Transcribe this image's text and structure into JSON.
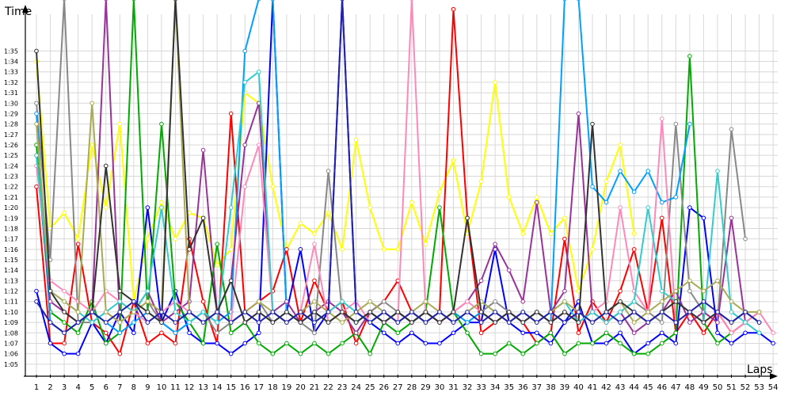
{
  "chart_data": {
    "type": "line",
    "title": "",
    "ylabel": "Time",
    "xlabel": "Laps",
    "x": [
      1,
      2,
      3,
      4,
      5,
      6,
      7,
      8,
      9,
      10,
      11,
      12,
      13,
      14,
      15,
      16,
      17,
      18,
      19,
      20,
      21,
      22,
      23,
      24,
      25,
      26,
      27,
      28,
      29,
      30,
      31,
      32,
      33,
      34,
      35,
      36,
      37,
      38,
      39,
      40,
      41,
      42,
      43,
      44,
      45,
      46,
      47,
      48,
      49,
      50,
      51,
      52,
      53,
      54
    ],
    "xlim": [
      1,
      54
    ],
    "ylim_seconds": [
      64,
      97
    ],
    "y_tick_labels": [
      "1:05",
      "1:06",
      "1:07",
      "1:08",
      "1:09",
      "1:10",
      "1:11",
      "1:12",
      "1:13",
      "1:14",
      "1:15",
      "1:16",
      "1:17",
      "1:18",
      "1:19",
      "1:20",
      "1:21",
      "1:22",
      "1:23",
      "1:24",
      "1:25",
      "1:26",
      "1:27",
      "1:28",
      "1:29",
      "1:30",
      "1:31",
      "1:32",
      "1:33",
      "1:34",
      "1:35"
    ],
    "grid": true,
    "legend": "none",
    "series": [
      {
        "color": "#ffff00",
        "values": [
          94,
          78,
          79.5,
          77,
          86,
          80,
          88,
          71,
          77,
          80.5,
          77,
          79.5,
          79,
          74.5,
          76,
          91,
          90,
          82,
          76,
          78.5,
          77.5,
          79.5,
          76,
          86.5,
          80,
          76,
          76,
          80.5,
          76.5,
          81.5,
          84.5,
          77.5,
          82.5,
          92,
          81,
          77.5,
          81,
          77.5,
          79,
          72,
          76,
          82.5,
          86,
          77.5,
          null,
          null,
          null,
          null,
          null,
          null,
          null,
          null,
          null,
          null
        ]
      },
      {
        "color": "#ff0000",
        "values": [
          82,
          67,
          67,
          76.5,
          69,
          68,
          66,
          71,
          67,
          68,
          67,
          77,
          71,
          67,
          89,
          70,
          71,
          72,
          76,
          69,
          73,
          70,
          71,
          67,
          70,
          71,
          73,
          70,
          69,
          70,
          99,
          79,
          68,
          69,
          70,
          69,
          67,
          68,
          77,
          68,
          71,
          69,
          72,
          76,
          70,
          79,
          68,
          70,
          68,
          70,
          68,
          69,
          70,
          null
        ]
      },
      {
        "color": "#0000ff",
        "values": [
          72,
          67,
          66,
          66,
          69,
          67,
          70,
          68,
          80,
          69,
          72,
          68,
          67,
          67,
          66,
          67,
          68,
          100,
          70,
          76,
          68,
          70,
          100,
          70,
          69,
          68,
          67,
          68,
          67,
          67,
          68,
          69,
          69,
          76,
          69,
          68,
          68,
          67,
          69,
          71,
          67,
          67,
          68,
          66,
          67,
          68,
          67,
          80,
          79,
          68,
          67,
          68,
          68,
          67
        ]
      },
      {
        "color": "#00aa00",
        "values": [
          86,
          70,
          69,
          68,
          71,
          67,
          68,
          100,
          70,
          88,
          71,
          69,
          67,
          76.5,
          68,
          69,
          67,
          66,
          67,
          66,
          67,
          66,
          67,
          68,
          66,
          69,
          68,
          69,
          70,
          80,
          70,
          68,
          66,
          66,
          67,
          66,
          67,
          68,
          66,
          67,
          67,
          68,
          67,
          66,
          66,
          67,
          68,
          94.5,
          69,
          67,
          68,
          69,
          70,
          null
        ]
      },
      {
        "color": "#888888",
        "values": [
          90,
          75,
          100,
          69,
          69,
          70,
          69,
          70,
          71,
          69,
          68,
          69,
          70,
          68,
          69,
          70,
          71,
          69,
          70,
          69,
          68,
          83.5,
          70,
          69,
          70,
          71,
          70,
          69,
          70,
          69,
          70,
          69,
          70,
          71,
          70,
          69,
          70,
          69,
          70,
          69,
          70,
          69,
          70,
          71,
          70,
          69,
          88,
          72,
          70,
          69,
          87.5,
          77,
          null,
          null
        ]
      },
      {
        "color": "#00a0ff",
        "values": [
          89,
          69,
          68,
          69,
          70,
          69,
          68,
          69,
          70,
          69,
          68,
          69,
          70,
          69,
          70,
          95,
          100,
          100,
          70,
          69,
          70,
          69,
          70,
          69,
          70,
          69,
          70,
          69,
          70,
          69,
          70,
          69,
          70,
          69,
          70,
          69,
          70,
          69,
          100,
          100,
          82,
          80.5,
          83.5,
          81.5,
          83.5,
          80.5,
          81,
          88,
          null,
          null,
          null,
          null,
          null,
          null
        ]
      },
      {
        "color": "#993399",
        "values": [
          85,
          71,
          70,
          69,
          70,
          100,
          69,
          70,
          72,
          69,
          70,
          71,
          85.5,
          70,
          73,
          86,
          90,
          70,
          71,
          69,
          70,
          71,
          70,
          68,
          70,
          69,
          70,
          69,
          70,
          69,
          70,
          71,
          73,
          76.5,
          74,
          71,
          80.5,
          70,
          72,
          89,
          70,
          69,
          70,
          68,
          69,
          70,
          72,
          69,
          70,
          69,
          79,
          69,
          null,
          null
        ]
      },
      {
        "color": "#ff88bb",
        "values": [
          84,
          73,
          72,
          71,
          70,
          72,
          71,
          70,
          69,
          70,
          71,
          70,
          69,
          70,
          69,
          82,
          86,
          70,
          69,
          70,
          76.5,
          69,
          70,
          71,
          69,
          70,
          69,
          100,
          70,
          69,
          70,
          71,
          70,
          69,
          70,
          69,
          70,
          69,
          70,
          69,
          70,
          71,
          80,
          72,
          70,
          88.5,
          69,
          70,
          69,
          70,
          68,
          69,
          70,
          68
        ]
      },
      {
        "color": "#33cccc",
        "values": [
          85,
          72,
          71,
          70,
          69,
          70,
          71,
          70,
          72,
          80,
          70,
          69,
          70,
          69,
          80,
          92,
          93,
          70,
          69,
          70,
          69,
          70,
          71,
          70,
          69,
          70,
          69,
          70,
          69,
          70,
          69,
          70,
          71,
          70,
          69,
          70,
          69,
          70,
          71,
          69,
          70,
          69,
          70,
          71,
          80,
          72,
          71,
          70,
          69,
          83.5,
          70,
          69,
          68,
          null
        ]
      },
      {
        "color": "#aaaa55",
        "values": [
          88,
          72,
          71,
          70,
          90,
          70,
          69,
          70,
          71,
          70,
          100,
          70,
          69,
          70,
          69,
          70,
          71,
          70,
          69,
          70,
          71,
          70,
          69,
          70,
          71,
          70,
          69,
          70,
          71,
          70,
          69,
          70,
          71,
          70,
          69,
          70,
          69,
          70,
          71,
          70,
          69,
          70,
          71,
          69,
          70,
          71,
          72,
          73,
          72,
          73,
          71,
          70,
          70,
          null
        ]
      },
      {
        "color": "#333333",
        "values": [
          95,
          72,
          70,
          69,
          70,
          84,
          72,
          71,
          70,
          69,
          100,
          76,
          79,
          70,
          73,
          69,
          70,
          69,
          70,
          69,
          70,
          69,
          70,
          69,
          70,
          69,
          70,
          69,
          70,
          69,
          70,
          79,
          70,
          69,
          70,
          69,
          70,
          69,
          70,
          69,
          88,
          70,
          71,
          70,
          69,
          70,
          71,
          70,
          69,
          70,
          69,
          70,
          69,
          null
        ]
      },
      {
        "color": "#2222aa",
        "values": [
          71,
          69,
          68,
          69,
          70,
          69,
          70,
          71,
          69,
          70,
          69,
          70,
          69,
          70,
          69,
          70,
          69,
          70,
          69,
          70,
          69,
          70,
          100,
          70,
          69,
          70,
          69,
          70,
          69,
          70,
          69,
          70,
          69,
          70,
          69,
          70,
          69,
          70,
          69,
          70,
          69,
          70,
          69,
          70,
          69,
          70,
          69,
          70,
          71,
          70,
          69,
          70,
          69,
          null
        ]
      }
    ]
  }
}
